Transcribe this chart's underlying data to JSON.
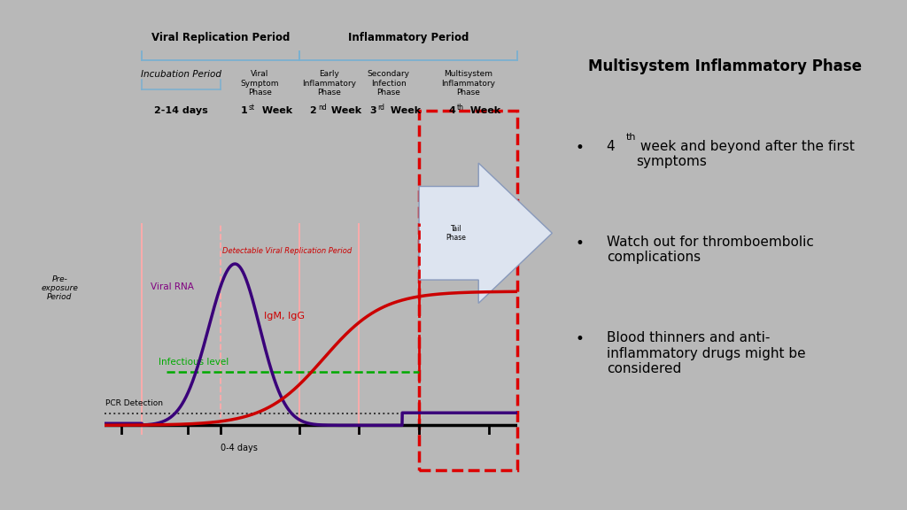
{
  "bg_color": "#b8b8b8",
  "left_panel_bg": "#ffffff",
  "right_panel_bg": "#ffffff",
  "title_right": "Multisystem Inflammatory Phase",
  "viral_replication_label": "Viral Replication Period",
  "inflammatory_label": "Inflammatory Period",
  "incubation_label": "Incubation Period",
  "viral_symptom_label": "Viral\nSymptom\nPhase",
  "early_inflammatory_label": "Early\nInflammatory\nPhase",
  "secondary_infection_label": "Secondary\nInfection\nPhase",
  "multisystem_label": "Multisystem\nInflammatory\nPhase",
  "pre_exposure_label": "Pre-\nexposure\nPeriod",
  "viral_rna_label": "Viral RNA",
  "igm_igg_label": "IgM, IgG",
  "infectious_level_label": "Infectious level",
  "pcr_detection_label": "PCR Detection",
  "detectable_label": "Detectable Viral Replication Period",
  "zero_four_days": "0-4 days",
  "tail_phase_label": "Tail\nPhase",
  "week_labels": [
    "2-14 days",
    "1",
    "st",
    " Week",
    "2",
    "nd",
    " Week",
    "3",
    "rd",
    " Week",
    "4",
    "th",
    " Week"
  ],
  "viral_rna_color": "#3a007a",
  "igm_color": "#cc0000",
  "infectious_color": "#00aa00",
  "pcr_color": "#333333",
  "vline_color": "#ffaaaa",
  "bracket_color": "#7ab0d0",
  "red_box_color": "#dd0000"
}
